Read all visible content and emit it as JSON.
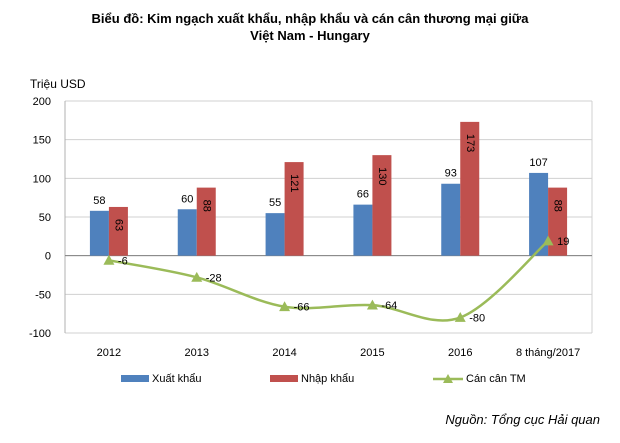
{
  "chart_data": {
    "type": "bar",
    "title_line1": "Biểu đồ: Kim ngạch xuất khẩu, nhập khẩu và cán cân thương mại giữa",
    "title_line2": "Việt Nam - Hungary",
    "ylabel": "Triệu USD",
    "ylim": [
      -100,
      200
    ],
    "yticks": [
      "200",
      "150",
      "100",
      "50",
      "0",
      "-50",
      "-100"
    ],
    "ytick_values": [
      200,
      150,
      100,
      50,
      0,
      -50,
      -100
    ],
    "categories": [
      "2012",
      "2013",
      "2014",
      "2015",
      "2016",
      "8 tháng/2017"
    ],
    "series": [
      {
        "name": "Xuất khẩu",
        "kind": "bar",
        "color": "#4F81BD",
        "values": [
          58,
          60,
          55,
          66,
          93,
          107
        ],
        "labels": [
          "58",
          "60",
          "55",
          "66",
          "93",
          "107"
        ]
      },
      {
        "name": "Nhập khẩu",
        "kind": "bar",
        "color": "#C0504D",
        "values": [
          63,
          88,
          121,
          130,
          173,
          88
        ],
        "labels": [
          "63",
          "88",
          "121",
          "130",
          "173",
          "88"
        ]
      },
      {
        "name": "Cán cân TM",
        "kind": "line",
        "color": "#9BBB59",
        "values": [
          -6,
          -28,
          -66,
          -64,
          -80,
          19
        ],
        "labels": [
          "-6",
          "-28",
          "-66",
          "-64",
          "-80",
          "19"
        ]
      }
    ],
    "grid": true,
    "legend": "bottom",
    "source": "Nguồn: Tổng cục Hải quan"
  }
}
